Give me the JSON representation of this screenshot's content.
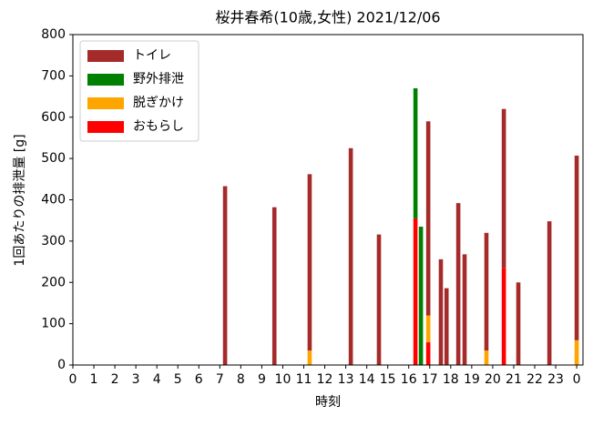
{
  "chart_data": {
    "type": "bar",
    "title": "桜井春希(10歳,女性) 2021/12/06",
    "xlabel": "時刻",
    "ylabel": "1回あたりの排泄量 [g]",
    "x": [
      7.25,
      9.6,
      11.28,
      13.24,
      14.58,
      16.32,
      16.58,
      16.93,
      17.53,
      17.8,
      18.36,
      18.66,
      19.7,
      20.53,
      21.22,
      22.7,
      24
    ],
    "series": [
      {
        "name": "トイレ",
        "color": "#a52a2a",
        "values": [
          433,
          382,
          427,
          525,
          316,
          0,
          0,
          470,
          256,
          186,
          392,
          268,
          285,
          385,
          200,
          348,
          447
        ]
      },
      {
        "name": "野外排泄",
        "color": "#008000",
        "values": [
          0,
          0,
          0,
          0,
          0,
          315,
          335,
          0,
          0,
          0,
          0,
          0,
          0,
          0,
          0,
          0,
          0
        ]
      },
      {
        "name": "脱ぎかけ",
        "color": "#ffa500",
        "values": [
          0,
          0,
          35,
          0,
          0,
          0,
          0,
          65,
          0,
          0,
          0,
          0,
          35,
          0,
          0,
          0,
          60
        ]
      },
      {
        "name": "おもらし",
        "color": "#ff0000",
        "values": [
          0,
          0,
          0,
          0,
          0,
          355,
          0,
          55,
          0,
          0,
          0,
          0,
          0,
          235,
          0,
          0,
          0
        ]
      }
    ],
    "stack_order": "bottom-up-reverse",
    "bar_width": 0.2,
    "xlim": [
      0,
      24.3
    ],
    "xticks": [
      0,
      1,
      2,
      3,
      4,
      5,
      6,
      7,
      8,
      9,
      10,
      11,
      12,
      13,
      14,
      15,
      16,
      17,
      18,
      19,
      20,
      21,
      22,
      23,
      {
        "value": 24,
        "label": "0"
      }
    ],
    "ylim": [
      0,
      800
    ],
    "yticks": [
      0,
      100,
      200,
      300,
      400,
      500,
      600,
      700,
      800
    ],
    "legend": "upper left"
  }
}
